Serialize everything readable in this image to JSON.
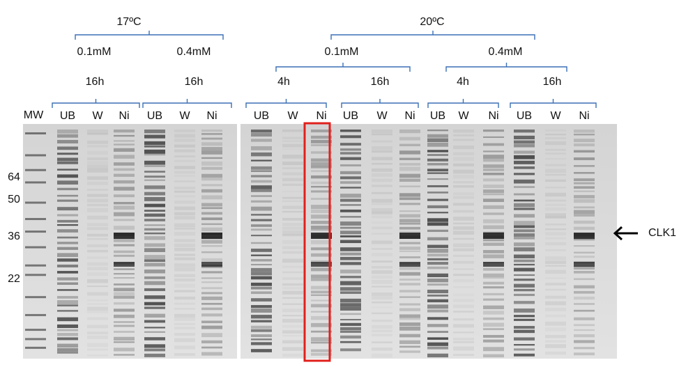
{
  "temperatures": [
    {
      "label": "17ºC",
      "concentrations": [
        {
          "label": "0.1mM",
          "times": [
            {
              "label": "16h",
              "lanes": [
                "UB",
                "W",
                "Ni"
              ]
            }
          ]
        },
        {
          "label": "0.4mM",
          "times": [
            {
              "label": "16h",
              "lanes": [
                "UB",
                "W",
                "Ni"
              ]
            }
          ]
        }
      ]
    },
    {
      "label": "20ºC",
      "concentrations": [
        {
          "label": "0.1mM",
          "times": [
            {
              "label": "4h",
              "lanes": [
                "UB",
                "W",
                "Ni"
              ]
            },
            {
              "label": "16h",
              "lanes": [
                "UB",
                "W",
                "Ni"
              ]
            }
          ]
        },
        {
          "label": "0.4mM",
          "times": [
            {
              "label": "4h",
              "lanes": [
                "UB",
                "W",
                "Ni"
              ]
            },
            {
              "label": "16h",
              "lanes": [
                "UB",
                "W",
                "Ni"
              ]
            }
          ]
        }
      ]
    }
  ],
  "marker": {
    "label": "MW",
    "sizes": [
      "64",
      "50",
      "36",
      "22"
    ]
  },
  "annotation": {
    "label": "CLK1"
  }
}
